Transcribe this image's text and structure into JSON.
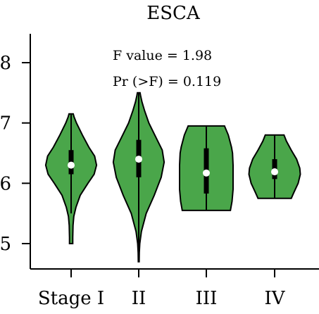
{
  "chart_data": {
    "type": "violin",
    "title": "ESCA",
    "categories": [
      "Stage I",
      "II",
      "III",
      "IV"
    ],
    "ylim": [
      4.5,
      8.5
    ],
    "yticks": [
      5,
      6,
      7,
      8
    ],
    "annotations": [
      "F value = 1.98",
      "Pr (>F) = 0.119"
    ],
    "fill_color": "#4aa64a",
    "grid": false,
    "violins": [
      {
        "category": "Stage I",
        "median": 6.3,
        "q1": 6.15,
        "q3": 6.55,
        "whisker_low": 5.5,
        "whisker_high": 7.15,
        "profile": [
          [
            5.0,
            0.06
          ],
          [
            5.1,
            0.06
          ],
          [
            5.3,
            0.07
          ],
          [
            5.45,
            0.1
          ],
          [
            5.6,
            0.18
          ],
          [
            5.8,
            0.34
          ],
          [
            6.0,
            0.63
          ],
          [
            6.15,
            0.86
          ],
          [
            6.3,
            0.95
          ],
          [
            6.45,
            0.88
          ],
          [
            6.6,
            0.66
          ],
          [
            6.8,
            0.42
          ],
          [
            7.0,
            0.2
          ],
          [
            7.1,
            0.11
          ],
          [
            7.15,
            0.08
          ]
        ]
      },
      {
        "category": "II",
        "median": 6.4,
        "q1": 6.1,
        "q3": 6.72,
        "whisker_low": 4.72,
        "whisker_high": 7.5,
        "profile": [
          [
            4.7,
            0.015
          ],
          [
            4.85,
            0.02
          ],
          [
            5.0,
            0.04
          ],
          [
            5.2,
            0.1
          ],
          [
            5.5,
            0.28
          ],
          [
            5.8,
            0.58
          ],
          [
            6.1,
            0.84
          ],
          [
            6.35,
            0.95
          ],
          [
            6.55,
            0.88
          ],
          [
            6.8,
            0.6
          ],
          [
            7.0,
            0.38
          ],
          [
            7.2,
            0.22
          ],
          [
            7.35,
            0.12
          ],
          [
            7.45,
            0.07
          ],
          [
            7.5,
            0.05
          ]
        ]
      },
      {
        "category": "III",
        "median": 6.17,
        "q1": 5.83,
        "q3": 6.58,
        "whisker_low": 5.55,
        "whisker_high": 6.95,
        "profile": [
          [
            5.55,
            0.9
          ],
          [
            5.7,
            0.96
          ],
          [
            5.9,
            1.0
          ],
          [
            6.1,
            1.0
          ],
          [
            6.3,
            1.0
          ],
          [
            6.5,
            0.98
          ],
          [
            6.6,
            0.94
          ],
          [
            6.8,
            0.82
          ],
          [
            6.95,
            0.68
          ]
        ]
      },
      {
        "category": "IV",
        "median": 6.19,
        "q1": 6.07,
        "q3": 6.4,
        "whisker_low": 5.75,
        "whisker_high": 6.8,
        "profile": [
          [
            5.75,
            0.62
          ],
          [
            5.85,
            0.72
          ],
          [
            6.0,
            0.88
          ],
          [
            6.15,
            0.96
          ],
          [
            6.25,
            0.94
          ],
          [
            6.4,
            0.82
          ],
          [
            6.55,
            0.62
          ],
          [
            6.7,
            0.44
          ],
          [
            6.8,
            0.35
          ]
        ]
      }
    ]
  }
}
